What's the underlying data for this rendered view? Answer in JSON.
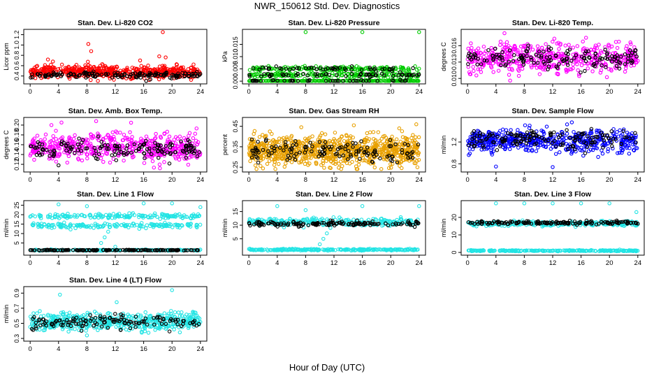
{
  "figure": {
    "title": "NWR_150612  Std. Dev. Diagnostics",
    "xlabel": "Hour of Day (UTC)"
  },
  "colors": {
    "black": "#000000",
    "red": "#ff0000",
    "green": "#00cc00",
    "magenta": "#ff00ff",
    "orange": "#e8a000",
    "blue": "#0000ff",
    "cyan": "#22e4e4"
  },
  "chart_data": [
    {
      "type": "scatter",
      "title": "Stan. Dev. Li-820 CO2",
      "ylabel": "Licor ppm",
      "xlim": [
        0,
        24
      ],
      "ylim": [
        0.3,
        1.25
      ],
      "xticks": [
        "0",
        "4",
        "8",
        "12",
        "16",
        "20",
        "24"
      ],
      "yticks": [
        {
          "v": 0.4,
          "label": "0.4"
        },
        {
          "v": 0.6,
          "label": "0.6"
        },
        {
          "v": 0.8,
          "label": "0.8"
        },
        {
          "v": 1.0,
          "label": "1.0"
        },
        {
          "v": 1.2,
          "label": "1.2"
        }
      ],
      "series": [
        {
          "color": "red",
          "bands": [
            {
              "mean": 0.48,
              "sd": 0.06
            }
          ],
          "n": 520,
          "outliers": [
            [
              2.5,
              0.72
            ],
            [
              3.2,
              0.68
            ],
            [
              8.2,
              1.02
            ],
            [
              8.6,
              0.88
            ],
            [
              15.5,
              0.7
            ],
            [
              18.7,
              1.25
            ],
            [
              18.2,
              0.78
            ],
            [
              19.1,
              0.76
            ]
          ]
        },
        {
          "color": "black",
          "bands": [
            {
              "mean": 0.42,
              "sd": 0.03
            }
          ],
          "n": 150,
          "outliers": []
        }
      ]
    },
    {
      "type": "scatter",
      "title": "Stan. Dev. Li-820 Pressure",
      "ylabel": "kPa",
      "xlim": [
        0,
        24
      ],
      "ylim": [
        0,
        0.02
      ],
      "xticks": [
        "0",
        "4",
        "8",
        "12",
        "16",
        "20",
        "24"
      ],
      "yticks": [
        {
          "v": 0.0,
          "label": "0.000"
        },
        {
          "v": 0.005,
          "label": "0.005"
        },
        {
          "v": 0.01,
          "label": "0.010"
        },
        {
          "v": 0.015,
          "label": "0.015"
        }
      ],
      "series": [
        {
          "color": "green",
          "bands": [
            {
              "mean": 0.0,
              "sd": 0.0002
            },
            {
              "mean": 0.0025,
              "sd": 0.0005
            },
            {
              "mean": 0.005,
              "sd": 0.0005
            }
          ],
          "n": 520,
          "outliers": [
            [
              8.0,
              0.02
            ],
            [
              16.0,
              0.02
            ],
            [
              24.0,
              0.02
            ]
          ]
        },
        {
          "color": "black",
          "bands": [
            {
              "mean": 0.0,
              "sd": 0.0002
            },
            {
              "mean": 0.0025,
              "sd": 0.0004
            },
            {
              "mean": 0.005,
              "sd": 0.0004
            }
          ],
          "n": 150,
          "outliers": []
        }
      ]
    },
    {
      "type": "scatter",
      "title": "Stan. Dev. Li-820 Temp.",
      "ylabel": "degrees C",
      "xlim": [
        0,
        24
      ],
      "ylim": [
        0.0095,
        0.0185
      ],
      "xticks": [
        "0",
        "4",
        "8",
        "12",
        "16",
        "20",
        "24"
      ],
      "yticks": [
        {
          "v": 0.01,
          "label": "0.010"
        },
        {
          "v": 0.013,
          "label": "0.013"
        },
        {
          "v": 0.016,
          "label": "0.016"
        }
      ],
      "series": [
        {
          "color": "magenta",
          "bands": [
            {
              "mean": 0.0138,
              "sd": 0.0014
            }
          ],
          "n": 520,
          "outliers": [
            [
              5.2,
              0.0183
            ],
            [
              6.0,
              0.0096
            ]
          ]
        },
        {
          "color": "black",
          "bands": [
            {
              "mean": 0.0138,
              "sd": 0.0009
            }
          ],
          "n": 150,
          "outliers": []
        }
      ]
    },
    {
      "type": "scatter",
      "title": "Stan. Dev. Amb. Box Temp.",
      "ylabel": "degrees C",
      "xlim": [
        0,
        24
      ],
      "ylim": [
        0.11,
        0.21
      ],
      "xticks": [
        "0",
        "4",
        "8",
        "12",
        "16",
        "20",
        "24"
      ],
      "yticks": [
        {
          "v": 0.12,
          "label": "0.12"
        },
        {
          "v": 0.14,
          "label": "0.14"
        },
        {
          "v": 0.16,
          "label": "0.16"
        },
        {
          "v": 0.18,
          "label": "0.18"
        },
        {
          "v": 0.2,
          "label": "0.20"
        }
      ],
      "series": [
        {
          "color": "magenta",
          "bands": [
            {
              "mean": 0.155,
              "sd": 0.014
            }
          ],
          "n": 520,
          "outliers": [
            [
              3.0,
              0.2
            ],
            [
              9.3,
              0.208
            ]
          ]
        },
        {
          "color": "black",
          "bands": [
            {
              "mean": 0.152,
              "sd": 0.01
            }
          ],
          "n": 150,
          "outliers": [
            [
              4.0,
              0.118
            ]
          ]
        }
      ]
    },
    {
      "type": "scatter",
      "title": "Stan. Dev. Gas Stream RH",
      "ylabel": "percent",
      "xlim": [
        0,
        24
      ],
      "ylim": [
        0.24,
        0.48
      ],
      "xticks": [
        "0",
        "4",
        "8",
        "12",
        "16",
        "20",
        "24"
      ],
      "yticks": [
        {
          "v": 0.25,
          "label": "0.25"
        },
        {
          "v": 0.35,
          "label": "0.35"
        },
        {
          "v": 0.45,
          "label": "0.45"
        }
      ],
      "series": [
        {
          "color": "orange",
          "bands": [
            {
              "mean": 0.33,
              "sd": 0.035
            }
          ],
          "n": 900,
          "outliers": [
            [
              14.8,
              0.455
            ],
            [
              21.2,
              0.44
            ],
            [
              23.6,
              0.46
            ]
          ]
        },
        {
          "color": "black",
          "bands": [
            {
              "mean": 0.33,
              "sd": 0.025
            }
          ],
          "n": 130,
          "outliers": []
        }
      ]
    },
    {
      "type": "scatter",
      "title": "Stan. Dev. Sample Flow",
      "ylabel": "ml/min",
      "xlim": [
        0,
        24
      ],
      "ylim": [
        0.7,
        1.6
      ],
      "xticks": [
        "0",
        "4",
        "8",
        "12",
        "16",
        "20",
        "24"
      ],
      "yticks": [
        {
          "v": 0.8,
          "label": "0.8"
        },
        {
          "v": 1.2,
          "label": "1.2"
        }
      ],
      "series": [
        {
          "color": "blue",
          "bands": [
            {
              "mean": 1.22,
              "sd": 0.1
            }
          ],
          "n": 520,
          "outliers": [
            [
              4.0,
              0.75
            ],
            [
              12.0,
              0.74
            ],
            [
              14.7,
              1.56
            ]
          ]
        },
        {
          "color": "black",
          "bands": [
            {
              "mean": 1.26,
              "sd": 0.08
            }
          ],
          "n": 150,
          "outliers": []
        }
      ]
    },
    {
      "type": "scatter",
      "title": "Stan. Dev. Line 1 Flow",
      "ylabel": "ml/min",
      "xlim": [
        0,
        24
      ],
      "ylim": [
        0,
        26
      ],
      "xticks": [
        "0",
        "4",
        "8",
        "12",
        "16",
        "20",
        "24"
      ],
      "yticks": [
        {
          "v": 5,
          "label": "5"
        },
        {
          "v": 10,
          "label": "10"
        },
        {
          "v": 15,
          "label": "15"
        },
        {
          "v": 20,
          "label": "20"
        },
        {
          "v": 25,
          "label": "25"
        }
      ],
      "series": [
        {
          "color": "cyan",
          "bands": [
            {
              "mean": 1.2,
              "sd": 0.15
            },
            {
              "mean": 14.2,
              "sd": 0.6
            },
            {
              "mean": 19.2,
              "sd": 0.6
            }
          ],
          "n": 520,
          "outliers": [
            [
              4.0,
              25.5
            ],
            [
              8.0,
              24.5
            ],
            [
              10.0,
              5.0
            ],
            [
              10.5,
              8.0
            ],
            [
              11.0,
              11.0
            ],
            [
              12.0,
              3.0
            ],
            [
              16.0,
              26.0
            ],
            [
              20.0,
              26.0
            ],
            [
              24.0,
              24.0
            ]
          ]
        },
        {
          "color": "black",
          "bands": [
            {
              "mean": 1.2,
              "sd": 0.1
            }
          ],
          "n": 150,
          "outliers": []
        }
      ]
    },
    {
      "type": "scatter",
      "title": "Stan. Dev. Line 2 Flow",
      "ylabel": "ml/min",
      "xlim": [
        0,
        24
      ],
      "ylim": [
        0,
        18
      ],
      "xticks": [
        "0",
        "4",
        "8",
        "12",
        "16",
        "20",
        "24"
      ],
      "yticks": [
        {
          "v": 5,
          "label": "5"
        },
        {
          "v": 10,
          "label": "10"
        },
        {
          "v": 15,
          "label": "15"
        }
      ],
      "series": [
        {
          "color": "cyan",
          "bands": [
            {
              "mean": 1.0,
              "sd": 0.15
            },
            {
              "mean": 11.2,
              "sd": 0.7
            }
          ],
          "n": 520,
          "outliers": [
            [
              4.0,
              17.0
            ],
            [
              8.0,
              15.5
            ],
            [
              10.0,
              3.0
            ],
            [
              10.5,
              5.0
            ],
            [
              11.0,
              7.0
            ],
            [
              11.5,
              9.0
            ],
            [
              16.0,
              17.0
            ],
            [
              24.0,
              17.0
            ]
          ]
        },
        {
          "color": "black",
          "bands": [
            {
              "mean": 10.5,
              "sd": 0.4
            }
          ],
          "n": 150,
          "outliers": []
        }
      ]
    },
    {
      "type": "scatter",
      "title": "Stan. Dev. Line 3 Flow",
      "ylabel": "ml/min",
      "xlim": [
        0,
        24
      ],
      "ylim": [
        0,
        28
      ],
      "xticks": [
        "0",
        "4",
        "8",
        "12",
        "16",
        "20",
        "24"
      ],
      "yticks": [
        {
          "v": 0,
          "label": "0"
        },
        {
          "v": 10,
          "label": "10"
        },
        {
          "v": 20,
          "label": "20"
        }
      ],
      "series": [
        {
          "color": "cyan",
          "bands": [
            {
              "mean": 1.0,
              "sd": 0.15
            },
            {
              "mean": 16.5,
              "sd": 0.7
            }
          ],
          "n": 520,
          "outliers": [
            [
              4.0,
              28.0
            ],
            [
              8.0,
              28.0
            ],
            [
              12.0,
              28.0
            ],
            [
              16.0,
              28.0
            ],
            [
              20.0,
              28.0
            ],
            [
              23.8,
              23.0
            ]
          ]
        },
        {
          "color": "black",
          "bands": [
            {
              "mean": 17.0,
              "sd": 0.5
            }
          ],
          "n": 150,
          "outliers": []
        }
      ]
    },
    {
      "type": "scatter",
      "title": "Stan. Dev. Line 4 (LT) Flow",
      "ylabel": "ml/min",
      "xlim": [
        0,
        24
      ],
      "ylim": [
        0.3,
        0.95
      ],
      "xticks": [
        "0",
        "4",
        "8",
        "12",
        "16",
        "20",
        "24"
      ],
      "yticks": [
        {
          "v": 0.3,
          "label": "0.3"
        },
        {
          "v": 0.5,
          "label": "0.5"
        },
        {
          "v": 0.7,
          "label": "0.7"
        },
        {
          "v": 0.9,
          "label": "0.9"
        }
      ],
      "series": [
        {
          "color": "cyan",
          "bands": [
            {
              "mean": 0.52,
              "sd": 0.06
            }
          ],
          "n": 520,
          "outliers": [
            [
              4.2,
              0.88
            ],
            [
              12.2,
              0.78
            ],
            [
              20.0,
              0.94
            ],
            [
              8.0,
              0.34
            ]
          ]
        },
        {
          "color": "black",
          "bands": [
            {
              "mean": 0.52,
              "sd": 0.05
            }
          ],
          "n": 130,
          "outliers": []
        }
      ]
    }
  ]
}
